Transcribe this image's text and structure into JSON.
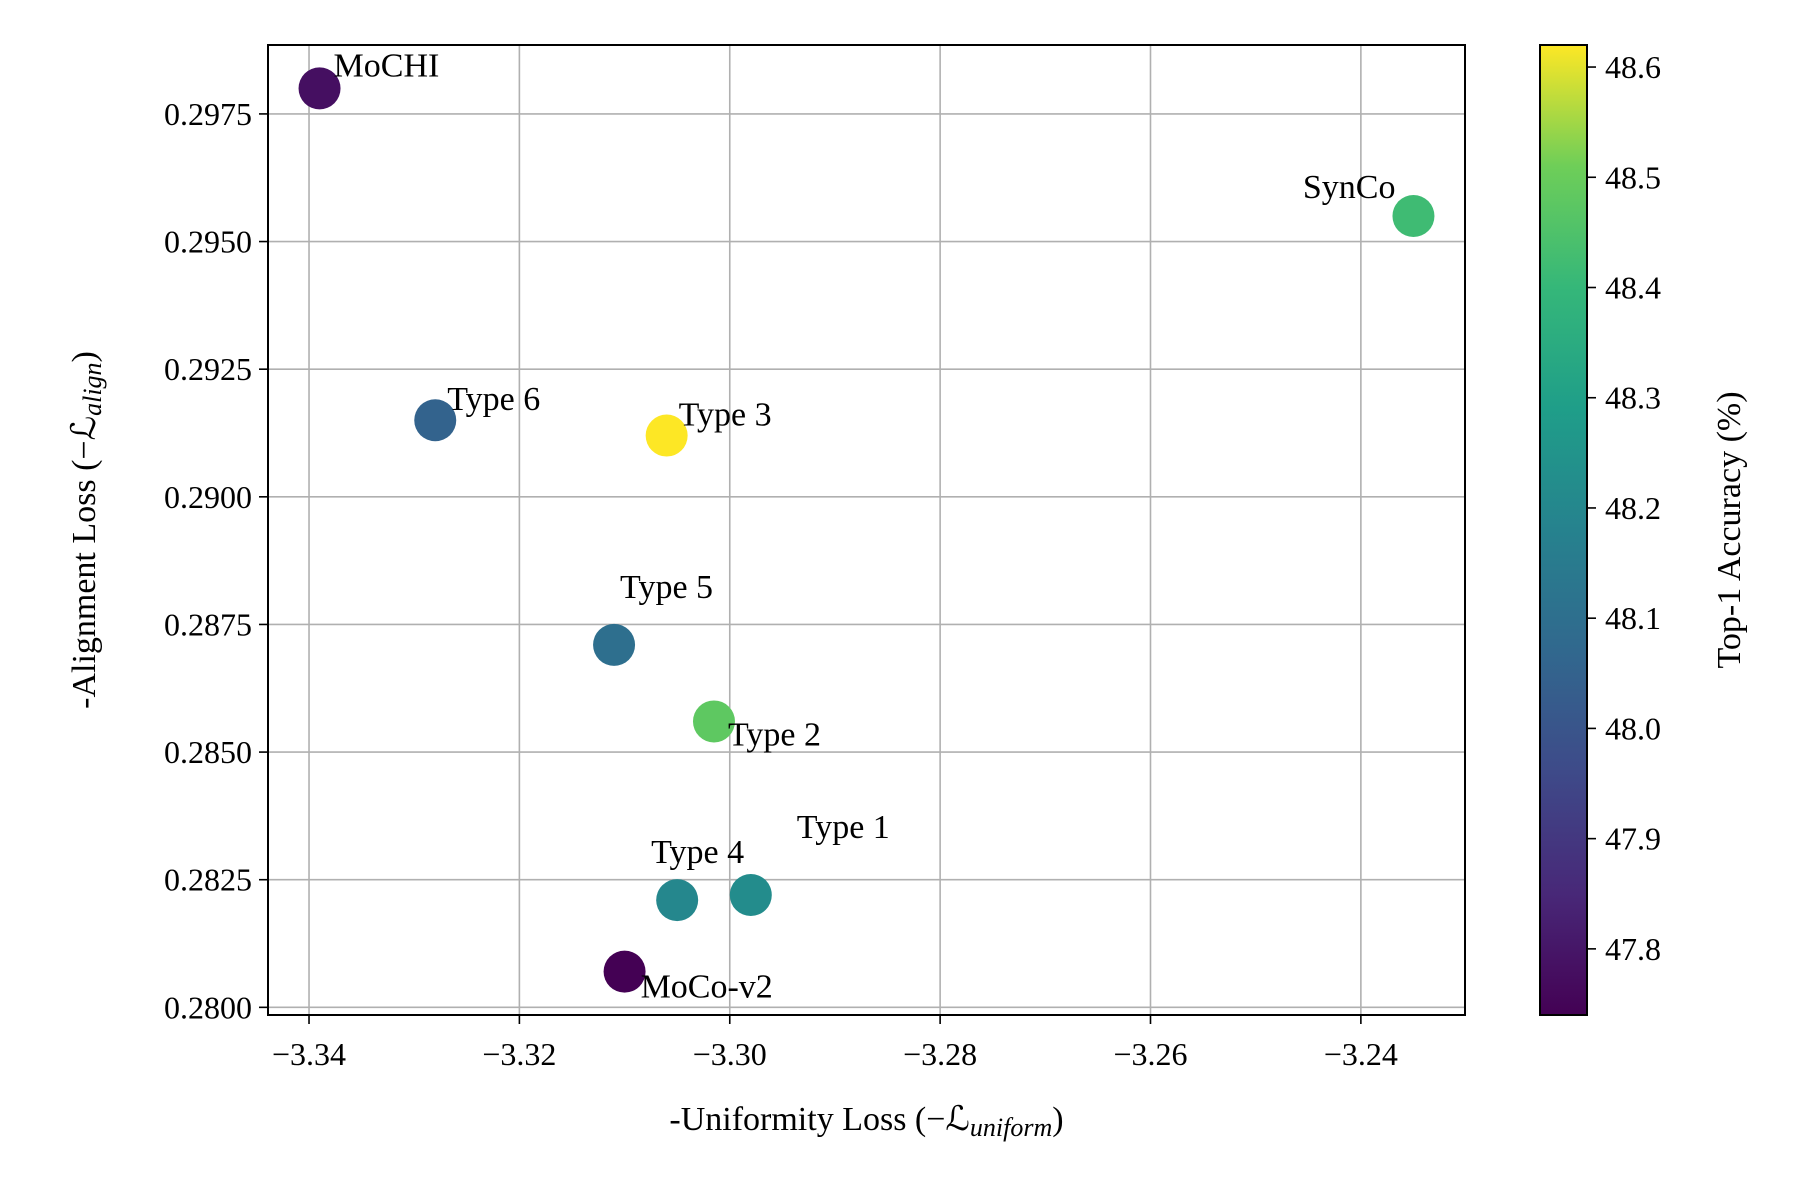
{
  "chart_data": {
    "type": "scatter",
    "title": "",
    "xlabel": "-Uniformity Loss (−ℒ",
    "xlabel_sub": "uniform",
    "xlabel_close": ")",
    "ylabel": "-Alignment Loss (−ℒ",
    "ylabel_sub": "align",
    "ylabel_close": ")",
    "xlim": [
      -3.3439,
      -3.2301
    ],
    "ylim": [
      0.27985,
      0.29885
    ],
    "xticks": [
      -3.34,
      -3.32,
      -3.3,
      -3.28,
      -3.26,
      -3.24
    ],
    "xtick_labels": [
      "−3.34",
      "−3.32",
      "−3.30",
      "−3.28",
      "−3.26",
      "−3.24"
    ],
    "yticks": [
      0.28,
      0.2825,
      0.285,
      0.2875,
      0.29,
      0.2925,
      0.295,
      0.2975
    ],
    "ytick_labels": [
      "0.2800",
      "0.2825",
      "0.2850",
      "0.2875",
      "0.2900",
      "0.2925",
      "0.2950",
      "0.2975"
    ],
    "grid": true,
    "colormap": "viridis",
    "colorbar": {
      "label": "Top-1 Accuracy (%)",
      "range": [
        47.74,
        48.62
      ],
      "ticks": [
        47.8,
        47.9,
        48.0,
        48.1,
        48.2,
        48.3,
        48.4,
        48.5,
        48.6
      ],
      "tick_labels": [
        "47.8",
        "47.9",
        "48.0",
        "48.1",
        "48.2",
        "48.3",
        "48.4",
        "48.5",
        "48.6"
      ]
    },
    "points": [
      {
        "label": "MoCHI",
        "x": -3.339,
        "y": 0.298,
        "acc": 47.78
      },
      {
        "label": "SynCo",
        "x": -3.235,
        "y": 0.2955,
        "acc": 48.42
      },
      {
        "label": "Type 6",
        "x": -3.328,
        "y": 0.2915,
        "acc": 48.05
      },
      {
        "label": "Type 3",
        "x": -3.306,
        "y": 0.2912,
        "acc": 48.62
      },
      {
        "label": "Type 5",
        "x": -3.311,
        "y": 0.2871,
        "acc": 48.1
      },
      {
        "label": "Type 2",
        "x": -3.3015,
        "y": 0.2856,
        "acc": 48.48
      },
      {
        "label": "Type 4",
        "x": -3.305,
        "y": 0.2821,
        "acc": 48.2
      },
      {
        "label": "Type 1",
        "x": -3.298,
        "y": 0.2822,
        "acc": 48.22
      },
      {
        "label": "MoCo-v2",
        "x": -3.31,
        "y": 0.2807,
        "acc": 47.74
      }
    ]
  }
}
